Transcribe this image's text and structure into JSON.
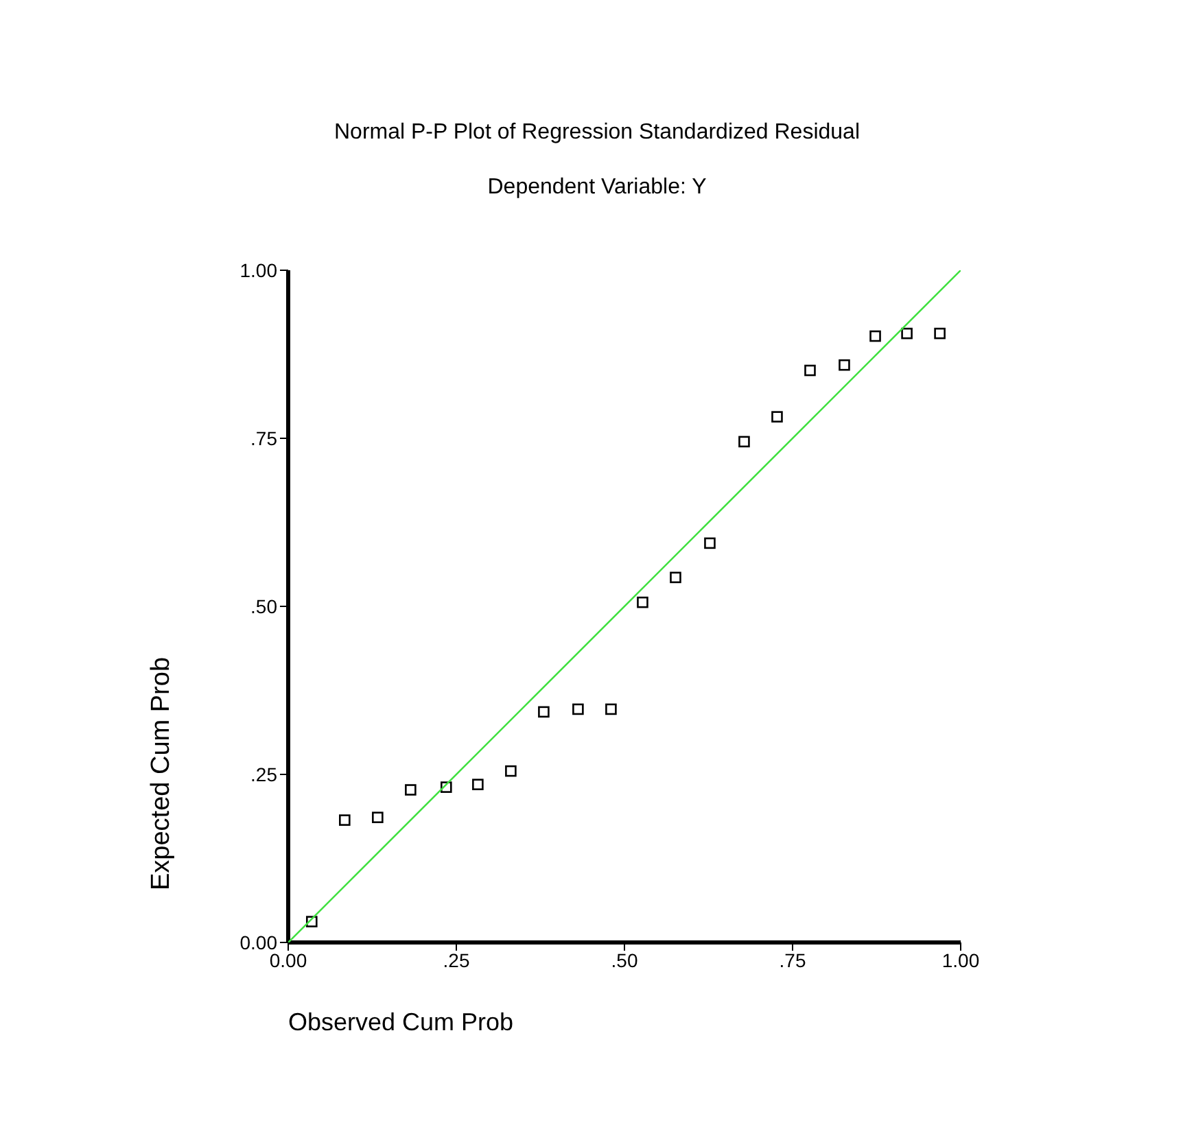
{
  "chart_data": {
    "type": "scatter",
    "title": "Normal P-P Plot of Regression Standardized Residual",
    "subtitle": "Dependent Variable: Y",
    "xlabel": "Observed Cum Prob",
    "ylabel": "Expected Cum Prob",
    "xlim": [
      0,
      1
    ],
    "ylim": [
      0,
      1
    ],
    "xticks": [
      {
        "value": 0,
        "label": "0.00"
      },
      {
        "value": 0.25,
        "label": ".25"
      },
      {
        "value": 0.5,
        "label": ".50"
      },
      {
        "value": 0.75,
        "label": ".75"
      },
      {
        "value": 1,
        "label": "1.00"
      }
    ],
    "yticks": [
      {
        "value": 0,
        "label": "0.00"
      },
      {
        "value": 0.25,
        "label": ".25"
      },
      {
        "value": 0.5,
        "label": ".50"
      },
      {
        "value": 0.75,
        "label": ".75"
      },
      {
        "value": 1,
        "label": "1.00"
      }
    ],
    "series": [
      {
        "marker": "square",
        "color": "#000000",
        "x": [
          0.035,
          0.084,
          0.133,
          0.182,
          0.235,
          0.282,
          0.331,
          0.38,
          0.431,
          0.48,
          0.527,
          0.576,
          0.627,
          0.678,
          0.727,
          0.776,
          0.827,
          0.873,
          0.92,
          0.969
        ],
        "values": [
          0.031,
          0.182,
          0.186,
          0.227,
          0.231,
          0.235,
          0.255,
          0.343,
          0.347,
          0.347,
          0.506,
          0.543,
          0.594,
          0.745,
          0.782,
          0.851,
          0.859,
          0.902,
          0.906,
          0.906
        ]
      },
      {
        "type": "line",
        "marker": "none",
        "color": "#40e040",
        "x": [
          0,
          1
        ],
        "values": [
          0,
          1
        ]
      }
    ]
  }
}
